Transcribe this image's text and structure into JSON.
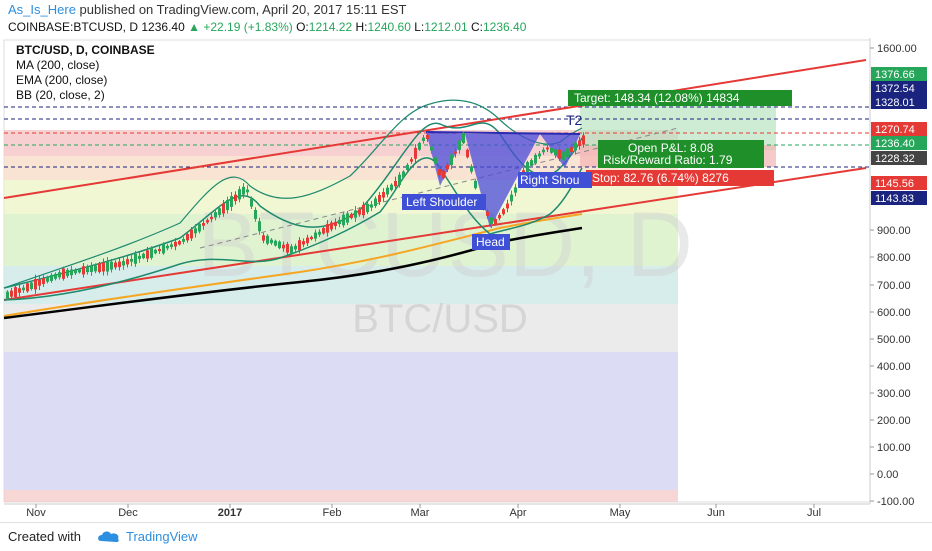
{
  "header": {
    "author": "As_Is_Here",
    "published_text": "published on TradingView.com, April 20, 2017 15:11 EST",
    "symbol": "COINBASE:BTCUSD, D",
    "last": "1236.40",
    "change": "+22.19 (+1.83%)",
    "o_label": "O:",
    "o": "1214.22",
    "h_label": "H:",
    "h": "1240.60",
    "l_label": "L:",
    "l": "1212.01",
    "c_label": "C:",
    "c": "1236.40"
  },
  "legend": [
    "BTC/USD, D, COINBASE",
    "MA (200, close)",
    "EMA (200, close)",
    "BB (20, close, 2)"
  ],
  "watermark": {
    "big": "BTCUSD, D",
    "small": "BTC/USD"
  },
  "annotations": {
    "target": "Target: 148.34 (12.08%) 14834",
    "open_pl": "Open P&L: 8.08",
    "risk_reward": "Risk/Reward Ratio: 1.79",
    "stop": "Stop: 82.76 (6.74%) 8276",
    "left_shoulder": "Left Shoulder",
    "head": "Head",
    "right_shoulder": "Right Shou",
    "t2": "T2"
  },
  "chart_data": {
    "type": "candlestick",
    "y_ticks": [
      "1600.00",
      "900.00",
      "800.00",
      "700.00",
      "600.00",
      "500.00",
      "400.00",
      "300.00",
      "200.00",
      "100.00",
      "0.00",
      "-100.00"
    ],
    "x_ticks": [
      "Nov",
      "Dec",
      "2017",
      "Feb",
      "Mar",
      "Apr",
      "May",
      "Jun",
      "Jul"
    ],
    "price_labels": [
      {
        "text": "1376.66",
        "color": "#26a65b"
      },
      {
        "text": "1372.54",
        "color": "#1a237e"
      },
      {
        "text": "1328.01",
        "color": "#1a237e"
      },
      {
        "text": "1270.74",
        "color": "#e53935"
      },
      {
        "text": "1236.40",
        "color": "#26a65b"
      },
      {
        "text": "1228.32",
        "color": "#444444"
      },
      {
        "text": "1145.56",
        "color": "#e53935"
      },
      {
        "text": "1143.83",
        "color": "#1a237e"
      }
    ],
    "ylim": [
      -120,
      1650
    ],
    "colors": {
      "up": "#26a65b",
      "down": "#e53935",
      "ma": "#000000",
      "ema": "#f5a623",
      "bb": "#1e8a6e",
      "channel": "#e53935"
    }
  },
  "footer": {
    "created": "Created with",
    "brand": "TradingView"
  }
}
